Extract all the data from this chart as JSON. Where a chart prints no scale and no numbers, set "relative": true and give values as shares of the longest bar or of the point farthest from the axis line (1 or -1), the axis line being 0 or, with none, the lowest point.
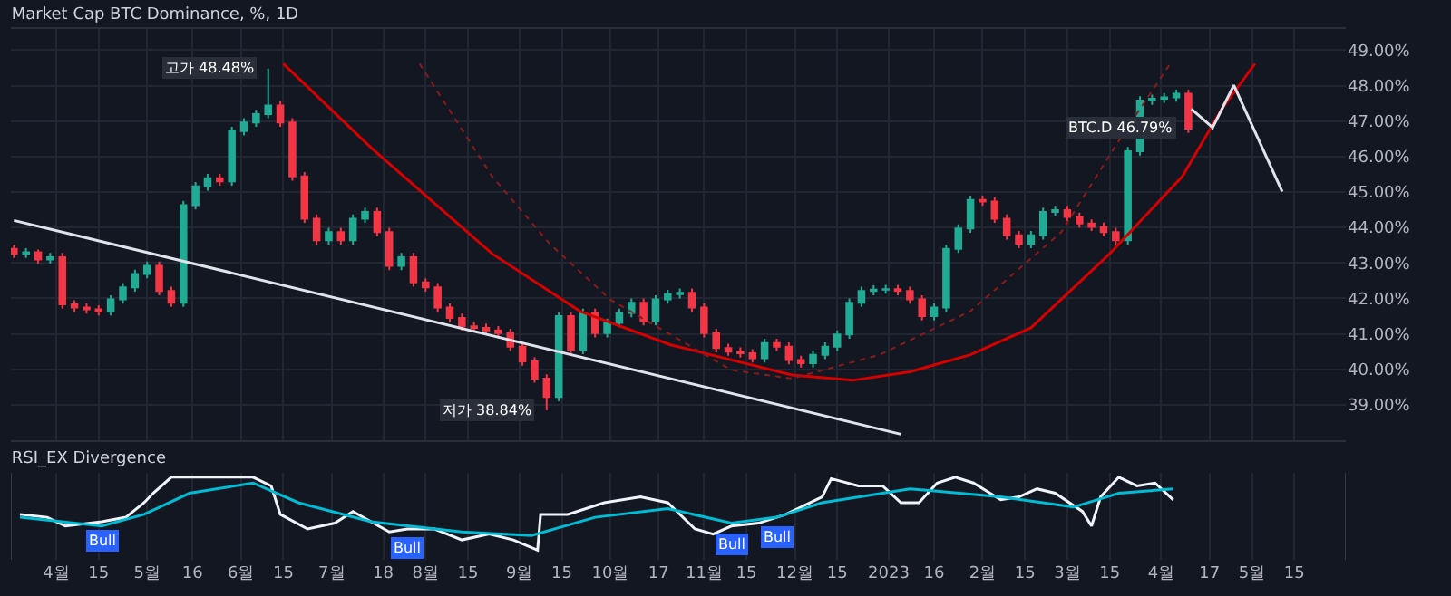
{
  "chart_data": [
    {
      "type": "candlestick",
      "title": "Market Cap BTC Dominance, %, 1D",
      "x": [
        "2022-03-18",
        "2022-03-22",
        "2022-03-26",
        "2022-03-30",
        "2022-04-03",
        "2022-04-07",
        "2022-04-11",
        "2022-04-15",
        "2022-04-19",
        "2022-04-23",
        "2022-04-27",
        "2022-05-01",
        "2022-05-05",
        "2022-05-09",
        "2022-05-13",
        "2022-05-17",
        "2022-05-21",
        "2022-05-25",
        "2022-05-29",
        "2022-06-02",
        "2022-06-06",
        "2022-06-10",
        "2022-06-14",
        "2022-06-18",
        "2022-06-22",
        "2022-06-26",
        "2022-06-30",
        "2022-07-04",
        "2022-07-08",
        "2022-07-12",
        "2022-07-16",
        "2022-07-20",
        "2022-07-24",
        "2022-07-28",
        "2022-08-01",
        "2022-08-05",
        "2022-08-09",
        "2022-08-13",
        "2022-08-17",
        "2022-08-21",
        "2022-08-25",
        "2022-08-29",
        "2022-09-02",
        "2022-09-06",
        "2022-09-10",
        "2022-09-14",
        "2022-09-18",
        "2022-09-22",
        "2022-09-26",
        "2022-09-30",
        "2022-10-04",
        "2022-10-08",
        "2022-10-12",
        "2022-10-16",
        "2022-10-20",
        "2022-10-24",
        "2022-10-28",
        "2022-11-01",
        "2022-11-05",
        "2022-11-09",
        "2022-11-13",
        "2022-11-17",
        "2022-11-21",
        "2022-11-25",
        "2022-11-29",
        "2022-12-03",
        "2022-12-07",
        "2022-12-11",
        "2022-12-15",
        "2022-12-19",
        "2022-12-23",
        "2022-12-27",
        "2022-12-31",
        "2023-01-04",
        "2023-01-08",
        "2023-01-12",
        "2023-01-16",
        "2023-01-20",
        "2023-01-24",
        "2023-01-28",
        "2023-02-01",
        "2023-02-05",
        "2023-02-09",
        "2023-02-13",
        "2023-02-17",
        "2023-02-21",
        "2023-02-25",
        "2023-03-01",
        "2023-03-05",
        "2023-03-09",
        "2023-03-13",
        "2023-03-17",
        "2023-03-21",
        "2023-03-25",
        "2023-03-29",
        "2023-04-02",
        "2023-04-06",
        "2023-04-10"
      ],
      "ohlc": [
        [
          43.4,
          43.52,
          43.14,
          43.26
        ],
        [
          43.26,
          43.42,
          43.14,
          43.3
        ],
        [
          43.3,
          43.38,
          42.98,
          43.1
        ],
        [
          43.1,
          43.28,
          42.98,
          43.16
        ],
        [
          43.16,
          43.28,
          41.71,
          41.83
        ],
        [
          41.83,
          41.95,
          41.62,
          41.74
        ],
        [
          41.74,
          41.86,
          41.57,
          41.69
        ],
        [
          41.69,
          41.81,
          41.52,
          41.64
        ],
        [
          41.64,
          42.09,
          41.52,
          41.97
        ],
        [
          41.97,
          42.43,
          41.85,
          42.31
        ],
        [
          42.31,
          42.81,
          42.19,
          42.69
        ],
        [
          42.69,
          43.04,
          42.57,
          42.92
        ],
        [
          42.92,
          43.04,
          42.09,
          42.21
        ],
        [
          42.21,
          42.33,
          41.76,
          41.88
        ],
        [
          41.88,
          44.75,
          41.76,
          44.63
        ],
        [
          44.63,
          45.28,
          44.51,
          45.16
        ],
        [
          45.16,
          45.51,
          45.04,
          45.39
        ],
        [
          45.39,
          45.51,
          45.18,
          45.3
        ],
        [
          45.3,
          46.84,
          45.18,
          46.72
        ],
        [
          46.72,
          47.08,
          46.6,
          46.96
        ],
        [
          46.96,
          47.32,
          46.84,
          47.2
        ],
        [
          47.2,
          48.48,
          47.08,
          47.44
        ],
        [
          47.44,
          47.56,
          46.84,
          46.96
        ],
        [
          46.96,
          47.08,
          45.32,
          45.44
        ],
        [
          45.44,
          45.56,
          44.13,
          44.25
        ],
        [
          44.25,
          44.37,
          43.52,
          43.64
        ],
        [
          43.64,
          43.99,
          43.52,
          43.87
        ],
        [
          43.87,
          43.99,
          43.52,
          43.64
        ],
        [
          43.64,
          44.37,
          43.52,
          44.25
        ],
        [
          44.25,
          44.56,
          44.13,
          44.44
        ],
        [
          44.44,
          44.56,
          43.75,
          43.87
        ],
        [
          43.87,
          43.99,
          42.8,
          42.92
        ],
        [
          42.92,
          43.28,
          42.8,
          43.16
        ],
        [
          43.16,
          43.28,
          42.33,
          42.45
        ],
        [
          42.45,
          42.57,
          42.19,
          42.31
        ],
        [
          42.31,
          42.43,
          41.62,
          41.74
        ],
        [
          41.74,
          41.86,
          41.33,
          41.45
        ],
        [
          41.45,
          41.57,
          41.09,
          41.21
        ],
        [
          41.21,
          41.33,
          41.05,
          41.17
        ],
        [
          41.17,
          41.29,
          40.98,
          41.1
        ],
        [
          41.1,
          41.22,
          40.9,
          41.02
        ],
        [
          41.02,
          41.14,
          40.52,
          40.64
        ],
        [
          40.64,
          40.76,
          40.1,
          40.22
        ],
        [
          40.22,
          40.34,
          39.62,
          39.74
        ],
        [
          39.74,
          39.86,
          38.84,
          39.22
        ],
        [
          39.22,
          41.62,
          39.1,
          41.5
        ],
        [
          41.5,
          41.62,
          40.43,
          40.55
        ],
        [
          40.55,
          41.71,
          40.43,
          41.59
        ],
        [
          41.59,
          41.71,
          40.9,
          41.02
        ],
        [
          41.02,
          41.43,
          40.9,
          41.31
        ],
        [
          41.31,
          41.71,
          41.19,
          41.59
        ],
        [
          41.59,
          42.0,
          41.47,
          41.88
        ],
        [
          41.88,
          42.0,
          41.24,
          41.36
        ],
        [
          41.36,
          42.09,
          41.24,
          41.97
        ],
        [
          41.97,
          42.24,
          41.85,
          42.12
        ],
        [
          42.12,
          42.28,
          42.0,
          42.16
        ],
        [
          42.16,
          42.28,
          41.62,
          41.74
        ],
        [
          41.74,
          41.86,
          40.9,
          41.02
        ],
        [
          41.02,
          41.14,
          40.48,
          40.6
        ],
        [
          40.6,
          40.72,
          40.38,
          40.5
        ],
        [
          40.5,
          40.62,
          40.33,
          40.45
        ],
        [
          40.45,
          40.57,
          40.19,
          40.31
        ],
        [
          40.31,
          40.86,
          40.19,
          40.74
        ],
        [
          40.74,
          40.86,
          40.52,
          40.64
        ],
        [
          40.64,
          40.76,
          40.14,
          40.26
        ],
        [
          40.26,
          40.38,
          40.05,
          40.17
        ],
        [
          40.17,
          40.53,
          40.05,
          40.41
        ],
        [
          40.41,
          40.76,
          40.29,
          40.64
        ],
        [
          40.64,
          41.1,
          40.52,
          40.98
        ],
        [
          40.98,
          42.0,
          40.86,
          41.88
        ],
        [
          41.88,
          42.33,
          41.76,
          42.21
        ],
        [
          42.21,
          42.37,
          42.09,
          42.25
        ],
        [
          42.25,
          42.38,
          42.13,
          42.26
        ],
        [
          42.26,
          42.38,
          42.09,
          42.21
        ],
        [
          42.21,
          42.33,
          41.85,
          41.97
        ],
        [
          41.97,
          42.09,
          41.38,
          41.5
        ],
        [
          41.5,
          41.86,
          41.38,
          41.74
        ],
        [
          41.74,
          43.52,
          41.62,
          43.4
        ],
        [
          43.4,
          44.09,
          43.28,
          43.97
        ],
        [
          43.97,
          44.9,
          43.85,
          44.78
        ],
        [
          44.78,
          44.9,
          44.61,
          44.73
        ],
        [
          44.73,
          44.85,
          44.13,
          44.25
        ],
        [
          44.25,
          44.37,
          43.66,
          43.78
        ],
        [
          43.78,
          43.9,
          43.42,
          43.54
        ],
        [
          43.54,
          43.9,
          43.42,
          43.78
        ],
        [
          43.78,
          44.56,
          43.66,
          44.44
        ],
        [
          44.44,
          44.61,
          44.32,
          44.49
        ],
        [
          44.49,
          44.61,
          44.18,
          44.3
        ],
        [
          44.3,
          44.42,
          43.99,
          44.11
        ],
        [
          44.11,
          44.23,
          43.9,
          44.02
        ],
        [
          44.02,
          44.14,
          43.75,
          43.87
        ],
        [
          43.87,
          43.99,
          43.52,
          43.64
        ],
        [
          43.64,
          46.27,
          43.52,
          46.15
        ],
        [
          46.15,
          47.7,
          46.03,
          47.58
        ],
        [
          47.58,
          47.75,
          47.46,
          47.63
        ],
        [
          47.63,
          47.79,
          47.51,
          47.67
        ],
        [
          47.67,
          47.89,
          47.55,
          47.77
        ],
        [
          47.77,
          47.89,
          46.67,
          46.79
        ]
      ],
      "series": [
        {
          "type": "line",
          "color": "#d50000",
          "line_style": "solid",
          "x": [
            "2022-06-15",
            "2022-07-14",
            "2022-08-23",
            "2022-09-21",
            "2022-10-21",
            "2022-11-30",
            "2022-12-20",
            "2023-01-08",
            "2023-01-28",
            "2023-02-17",
            "2023-03-15",
            "2023-04-08",
            "2023-04-21",
            "2023-05-02"
          ],
          "values": [
            48.62,
            46.25,
            43.26,
            41.64,
            40.69,
            39.84,
            39.69,
            39.93,
            40.41,
            41.17,
            43.26,
            45.44,
            47.34,
            48.62
          ]
        },
        {
          "type": "line",
          "color": "#8b1a1a",
          "line_style": "dotted",
          "x": [
            "2022-07-30",
            "2022-08-23",
            "2022-09-11",
            "2022-10-01",
            "2022-11-10",
            "2022-11-30",
            "2022-12-29",
            "2023-01-28",
            "2023-02-27",
            "2023-03-19",
            "2023-04-04"
          ],
          "values": [
            48.62,
            45.44,
            43.54,
            41.97,
            39.98,
            39.74,
            40.41,
            41.64,
            43.87,
            46.58,
            48.62
          ]
        },
        {
          "type": "line",
          "color": "#e0e3eb",
          "line_style": "solid",
          "x": [
            "2022-03-18",
            "2023-01-05"
          ],
          "values": [
            44.2,
            38.17
          ]
        },
        {
          "type": "line",
          "color": "#e0e3eb",
          "line_style": "solid",
          "x": [
            "2023-04-11",
            "2023-04-18",
            "2023-04-25",
            "2023-05-11"
          ],
          "values": [
            47.34,
            46.82,
            48.01,
            45.01
          ]
        }
      ],
      "xlim": [
        "2022-03-17",
        "2023-06-01"
      ],
      "xticks": [
        {
          "value": "2022-04-01",
          "label": null
        },
        {
          "value": "2022-04-15",
          "label": null
        },
        {
          "value": "2022-05-01",
          "label": null
        },
        {
          "value": "2022-05-16",
          "label": null
        },
        {
          "value": "2022-06-01",
          "label": null
        },
        {
          "value": "2022-06-15",
          "label": null
        },
        {
          "value": "2022-07-01",
          "label": null
        },
        {
          "value": "2022-07-18",
          "label": null
        },
        {
          "value": "2022-08-01",
          "label": null
        },
        {
          "value": "2022-08-15",
          "label": null
        },
        {
          "value": "2022-09-01",
          "label": null
        },
        {
          "value": "2022-09-15",
          "label": null
        },
        {
          "value": "2022-10-01",
          "label": null
        },
        {
          "value": "2022-10-17",
          "label": null
        },
        {
          "value": "2022-11-01",
          "label": null
        },
        {
          "value": "2022-11-15",
          "label": null
        },
        {
          "value": "2022-12-01",
          "label": null
        },
        {
          "value": "2022-12-15",
          "label": null
        },
        {
          "value": "2023-01-01",
          "label": null
        },
        {
          "value": "2023-01-16",
          "label": null
        },
        {
          "value": "2023-02-01",
          "label": null
        },
        {
          "value": "2023-02-15",
          "label": null
        },
        {
          "value": "2023-03-01",
          "label": null
        },
        {
          "value": "2023-03-15",
          "label": null
        },
        {
          "value": "2023-04-01",
          "label": null
        },
        {
          "value": "2023-04-17",
          "label": null
        },
        {
          "value": "2023-05-01",
          "label": null
        },
        {
          "value": "2023-05-15",
          "label": null
        }
      ],
      "ylim": [
        38.0,
        49.6
      ],
      "yticks": [
        {
          "value": 39,
          "label": "39.00%"
        },
        {
          "value": 40,
          "label": "40.00%"
        },
        {
          "value": 41,
          "label": "41.00%"
        },
        {
          "value": 42,
          "label": "42.00%"
        },
        {
          "value": 43,
          "label": "43.00%"
        },
        {
          "value": 44,
          "label": "44.00%"
        },
        {
          "value": 45,
          "label": "45.00%"
        },
        {
          "value": 46,
          "label": "46.00%"
        },
        {
          "value": 47,
          "label": "47.00%"
        },
        {
          "value": 48,
          "label": "48.00%"
        },
        {
          "value": 49,
          "label": "49.00%"
        }
      ],
      "tick_labels": "y",
      "grid": true,
      "annotations": [
        {
          "text": "고가 48.48%",
          "x": "2022-06-10",
          "y": 48.48
        },
        {
          "text": "저가 38.84%",
          "x": "2022-09-10",
          "y": 38.84
        },
        {
          "text": "BTC.D 46.79%",
          "x": "2023-04-10",
          "y": 46.79
        }
      ]
    },
    {
      "type": "line",
      "title": "RSI_EX Divergence",
      "relative": true,
      "series": [
        {
          "color": "#f0f3fa",
          "x": [
            "2022-03-20",
            "2022-03-29",
            "2022-04-04",
            "2022-04-16",
            "2022-04-24",
            "2022-04-30",
            "2022-05-03",
            "2022-05-09",
            "2022-05-24",
            "2022-06-05",
            "2022-06-11",
            "2022-06-14",
            "2022-06-23",
            "2022-07-02",
            "2022-07-08",
            "2022-07-14",
            "2022-07-20",
            "2022-07-26",
            "2022-08-04",
            "2022-08-13",
            "2022-08-22",
            "2022-08-30",
            "2022-09-07",
            "2022-09-08",
            "2022-09-17",
            "2022-09-29",
            "2022-10-11",
            "2022-10-20",
            "2022-10-29",
            "2022-11-04",
            "2022-11-10",
            "2022-11-19",
            "2022-11-28",
            "2022-12-10",
            "2022-12-13",
            "2022-12-22",
            "2022-12-30",
            "2023-01-05",
            "2023-01-11",
            "2023-01-17",
            "2023-01-23",
            "2023-01-29",
            "2023-02-07",
            "2023-02-13",
            "2023-02-19",
            "2023-02-25",
            "2023-03-06",
            "2023-03-09",
            "2023-03-12",
            "2023-03-18",
            "2023-03-24",
            "2023-03-30",
            "2023-04-05"
          ],
          "values": [
            0.49,
            0.45,
            0.33,
            0.39,
            0.45,
            0.65,
            0.78,
            1,
            1,
            1,
            0.88,
            0.49,
            0.29,
            0.37,
            0.53,
            0.39,
            0.25,
            0.29,
            0.29,
            0.14,
            0.22,
            0.14,
            0,
            0.49,
            0.49,
            0.65,
            0.73,
            0.65,
            0.29,
            0.22,
            0.33,
            0.37,
            0.49,
            0.73,
            0.98,
            0.88,
            0.88,
            0.65,
            0.65,
            0.92,
            1,
            0.92,
            0.69,
            0.73,
            0.84,
            0.78,
            0.53,
            0.33,
            0.73,
            1,
            0.88,
            0.92,
            0.69
          ]
        },
        {
          "color": "#00bcd4",
          "x": [
            "2022-03-20",
            "2022-04-16",
            "2022-04-30",
            "2022-05-15",
            "2022-06-05",
            "2022-06-20",
            "2022-07-14",
            "2022-08-13",
            "2022-09-05",
            "2022-09-26",
            "2022-10-20",
            "2022-11-10",
            "2022-11-25",
            "2022-12-10",
            "2023-01-08",
            "2023-02-07",
            "2023-03-03",
            "2023-03-18",
            "2023-04-05"
          ],
          "values": [
            0.45,
            0.33,
            0.49,
            0.78,
            0.92,
            0.65,
            0.39,
            0.25,
            0.2,
            0.45,
            0.57,
            0.37,
            0.45,
            0.65,
            0.84,
            0.73,
            0.59,
            0.78,
            0.84
          ]
        }
      ],
      "xlim": [
        "2022-03-17",
        "2023-06-01"
      ],
      "xticks": [
        {
          "value": "2022-04-01",
          "label": "4월"
        },
        {
          "value": "2022-04-15",
          "label": "15"
        },
        {
          "value": "2022-05-01",
          "label": "5월"
        },
        {
          "value": "2022-05-16",
          "label": "16"
        },
        {
          "value": "2022-06-01",
          "label": "6월"
        },
        {
          "value": "2022-06-15",
          "label": "15"
        },
        {
          "value": "2022-07-01",
          "label": "7월"
        },
        {
          "value": "2022-07-18",
          "label": "18"
        },
        {
          "value": "2022-08-01",
          "label": "8월"
        },
        {
          "value": "2022-08-15",
          "label": "15"
        },
        {
          "value": "2022-09-01",
          "label": "9월"
        },
        {
          "value": "2022-09-15",
          "label": "15"
        },
        {
          "value": "2022-10-01",
          "label": "10월"
        },
        {
          "value": "2022-10-17",
          "label": "17"
        },
        {
          "value": "2022-11-01",
          "label": "11월"
        },
        {
          "value": "2022-11-15",
          "label": "15"
        },
        {
          "value": "2022-12-01",
          "label": "12월"
        },
        {
          "value": "2022-12-15",
          "label": "15"
        },
        {
          "value": "2023-01-01",
          "label": "2023"
        },
        {
          "value": "2023-01-16",
          "label": "16"
        },
        {
          "value": "2023-02-01",
          "label": "2월"
        },
        {
          "value": "2023-02-15",
          "label": "15"
        },
        {
          "value": "2023-03-01",
          "label": "3월"
        },
        {
          "value": "2023-03-15",
          "label": "15"
        },
        {
          "value": "2023-04-01",
          "label": "4월"
        },
        {
          "value": "2023-04-17",
          "label": "17"
        },
        {
          "value": "2023-05-01",
          "label": "5월"
        },
        {
          "value": "2023-05-15",
          "label": "15"
        }
      ],
      "tick_labels": "x",
      "grid": "x",
      "annotations": [
        {
          "text": "Bull",
          "x": "2022-04-16",
          "y": 0.39
        },
        {
          "text": "Bull",
          "x": "2022-07-26",
          "y": 0.29
        },
        {
          "text": "Bull",
          "x": "2022-11-10",
          "y": 0.33
        },
        {
          "text": "Bull",
          "x": "2022-11-25",
          "y": 0.45
        }
      ]
    }
  ]
}
